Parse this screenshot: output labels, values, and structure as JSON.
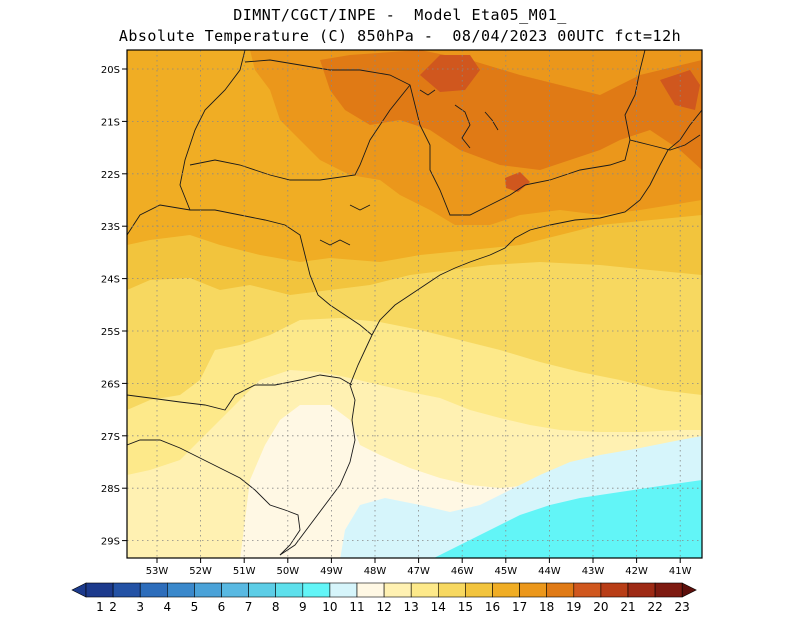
{
  "header": {
    "line1": "DIMNT/CGCT/INPE -  Model Eta05_M01_",
    "line2": "Absolute Temperature (C) 850hPa -  08/04/2023 00UTC fct=12h"
  },
  "axes": {
    "lat_labels": [
      "20S",
      "21S",
      "22S",
      "23S",
      "24S",
      "25S",
      "26S",
      "27S",
      "28S",
      "29S"
    ],
    "lon_labels": [
      "53W",
      "52W",
      "51W",
      "50W",
      "49W",
      "48W",
      "47W",
      "46W",
      "45W",
      "44W",
      "43W",
      "42W",
      "41W"
    ]
  },
  "colorbar": {
    "labels": [
      "1",
      "2",
      "3",
      "4",
      "5",
      "6",
      "7",
      "8",
      "9",
      "10",
      "11",
      "12",
      "13",
      "14",
      "15",
      "16",
      "17",
      "18",
      "19",
      "20",
      "21",
      "22",
      "23"
    ],
    "colors": [
      "#1c3a8c",
      "#2352a5",
      "#2d6dbb",
      "#3a88cb",
      "#4aa2d8",
      "#59b9e2",
      "#5ccde6",
      "#5ee0ec",
      "#62f5f7",
      "#d6f5fb",
      "#fff8e4",
      "#fff1b2",
      "#fde98a",
      "#f7d860",
      "#f2c43d",
      "#f0ad24",
      "#eb971b",
      "#e07a15",
      "#d0571e",
      "#b83d16",
      "#9e2a14",
      "#7e1a10",
      "#5c0f0b"
    ]
  },
  "map_colors": {
    "t10": "#d6f5fb",
    "t9": "#62f5f7",
    "t11": "#fff8e4",
    "t12": "#fff1b2",
    "t13": "#fde98a",
    "t14": "#f7d860",
    "t15": "#f2c43d",
    "t16": "#f0ad24",
    "t17": "#eb971b",
    "t18": "#e07a15",
    "t19": "#d0571e",
    "t20": "#b83d16"
  }
}
